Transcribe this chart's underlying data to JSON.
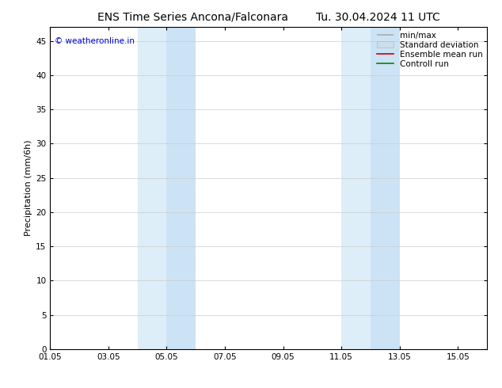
{
  "title": "ENS Time Series Ancona/Falconara        Tu. 30.04.2024 11 UTC",
  "ylabel": "Precipitation (mm/6h)",
  "watermark": "© weatheronline.in",
  "watermark_color": "#0000cc",
  "ylim": [
    0,
    47
  ],
  "yticks": [
    0,
    5,
    10,
    15,
    20,
    25,
    30,
    35,
    40,
    45
  ],
  "xlim": [
    0,
    15
  ],
  "xtick_labels": [
    "01.05",
    "03.05",
    "05.05",
    "07.05",
    "09.05",
    "11.05",
    "13.05",
    "15.05"
  ],
  "xtick_positions": [
    0,
    2,
    4,
    6,
    8,
    10,
    12,
    14
  ],
  "shaded_regions": [
    {
      "x_start": 3.0,
      "x_end": 4.0,
      "color": "#ddeef8"
    },
    {
      "x_start": 4.0,
      "x_end": 5.0,
      "color": "#cce3f5"
    },
    {
      "x_start": 10.0,
      "x_end": 11.0,
      "color": "#ddeef8"
    },
    {
      "x_start": 11.0,
      "x_end": 12.0,
      "color": "#cce3f5"
    }
  ],
  "legend_items": [
    {
      "label": "min/max",
      "type": "minmax",
      "color": "#aaaaaa"
    },
    {
      "label": "Standard deviation",
      "type": "patch",
      "color": "#ccdded"
    },
    {
      "label": "Ensemble mean run",
      "type": "line",
      "color": "#cc0000"
    },
    {
      "label": "Controll run",
      "type": "line",
      "color": "#008800"
    }
  ],
  "background_color": "#ffffff",
  "grid_color": "#cccccc",
  "title_fontsize": 10,
  "tick_fontsize": 7.5,
  "ylabel_fontsize": 8,
  "legend_fontsize": 7.5
}
